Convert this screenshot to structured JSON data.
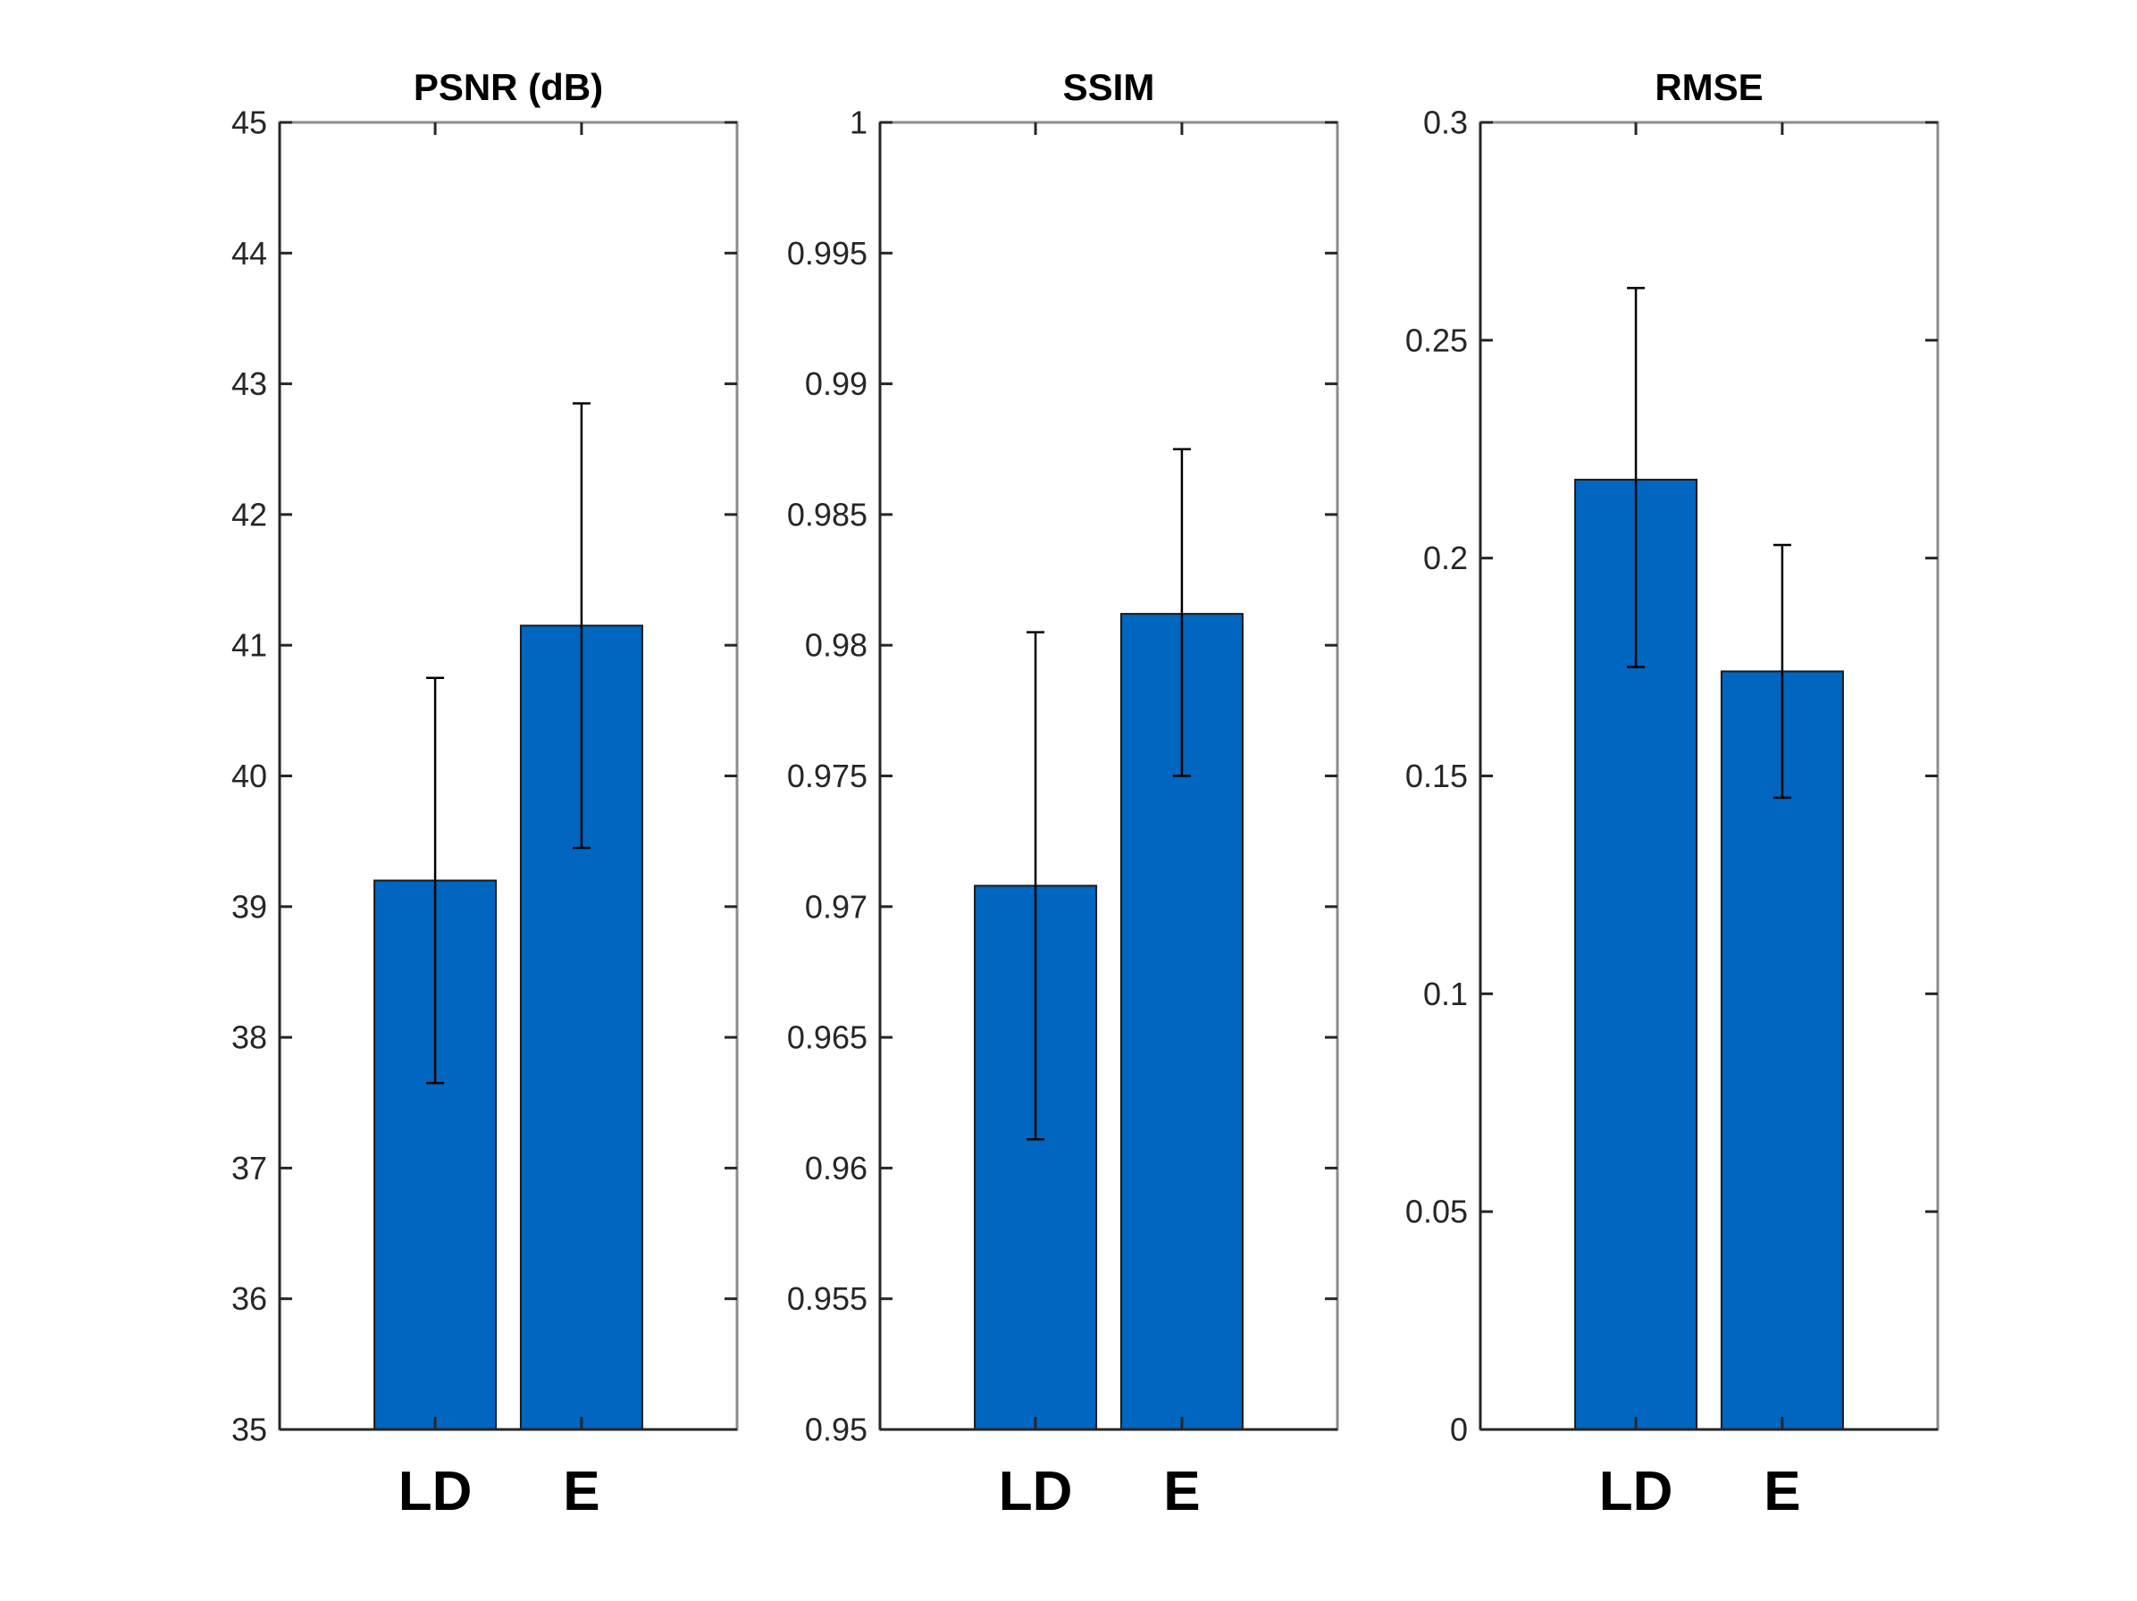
{
  "chart_data": [
    {
      "type": "bar",
      "title": "PSNR (dB)",
      "categories": [
        "LD",
        "E"
      ],
      "values": [
        39.2,
        41.15
      ],
      "error_low": [
        37.65,
        39.45
      ],
      "error_high": [
        40.75,
        42.85
      ],
      "ylim": [
        35,
        45
      ],
      "yticks": [
        35,
        36,
        37,
        38,
        39,
        40,
        41,
        42,
        43,
        44,
        45
      ],
      "ytick_labels": [
        "35",
        "36",
        "37",
        "38",
        "39",
        "40",
        "41",
        "42",
        "43",
        "44",
        "45"
      ],
      "xlabel": "",
      "ylabel": "",
      "grid": false,
      "color": "#0066bf"
    },
    {
      "type": "bar",
      "title": "SSIM",
      "categories": [
        "LD",
        "E"
      ],
      "values": [
        0.9708,
        0.9812
      ],
      "error_low": [
        0.9611,
        0.975
      ],
      "error_high": [
        0.9805,
        0.9875
      ],
      "ylim": [
        0.95,
        1
      ],
      "yticks": [
        0.95,
        0.955,
        0.96,
        0.965,
        0.97,
        0.975,
        0.98,
        0.985,
        0.99,
        0.995,
        1
      ],
      "ytick_labels": [
        "0.95",
        "0.955",
        "0.96",
        "0.965",
        "0.97",
        "0.975",
        "0.98",
        "0.985",
        "0.99",
        "0.995",
        "1"
      ],
      "xlabel": "",
      "ylabel": "",
      "grid": false,
      "color": "#0066bf"
    },
    {
      "type": "bar",
      "title": "RMSE",
      "categories": [
        "LD",
        "E"
      ],
      "values": [
        0.218,
        0.174
      ],
      "error_low": [
        0.175,
        0.145
      ],
      "error_high": [
        0.262,
        0.203
      ],
      "ylim": [
        0,
        0.3
      ],
      "yticks": [
        0,
        0.05,
        0.1,
        0.15,
        0.2,
        0.25,
        0.3
      ],
      "ytick_labels": [
        "0",
        "0.05",
        "0.1",
        "0.15",
        "0.2",
        "0.25",
        "0.3"
      ],
      "xlabel": "",
      "ylabel": "",
      "grid": false,
      "color": "#0066bf"
    }
  ]
}
